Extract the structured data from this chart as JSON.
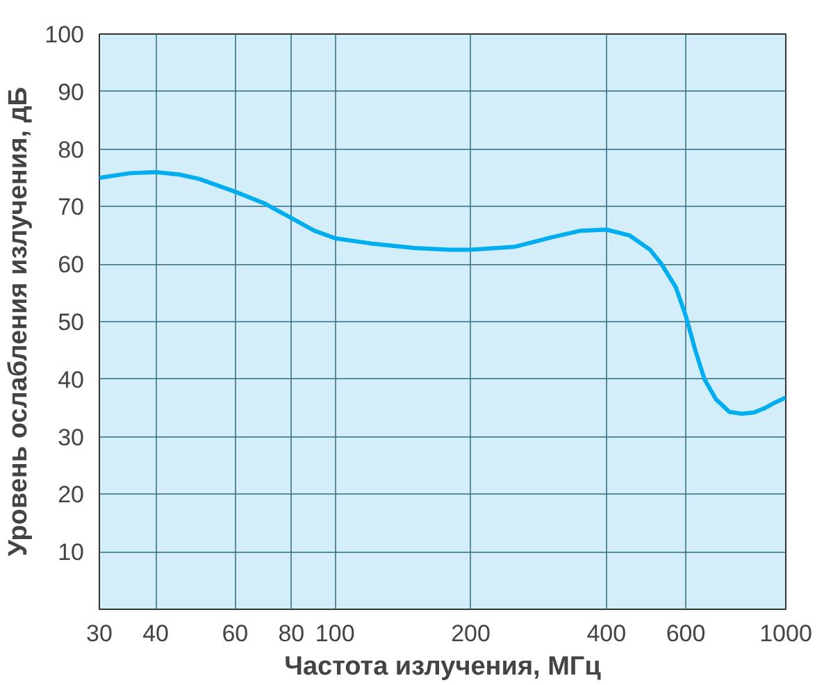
{
  "chart_data": {
    "type": "line",
    "xlabel": "Частота излучения, МГц",
    "ylabel": "Уровень ослабления излучения, дБ",
    "log": "x",
    "xlim": [
      30,
      1000
    ],
    "ylim": [
      0,
      100
    ],
    "xticks": [
      30,
      40,
      60,
      80,
      100,
      200,
      400,
      600,
      1000
    ],
    "yticks": [
      10,
      20,
      30,
      40,
      50,
      60,
      70,
      80,
      90,
      100
    ],
    "grid": true,
    "marker": "none",
    "line_style": "solid",
    "series": [
      {
        "color": "#00aeef",
        "x": [
          30,
          35,
          40,
          45,
          50,
          60,
          70,
          80,
          90,
          100,
          120,
          150,
          180,
          200,
          250,
          300,
          350,
          400,
          450,
          500,
          530,
          570,
          600,
          630,
          660,
          700,
          750,
          800,
          850,
          900,
          950,
          1000
        ],
        "values": [
          75,
          75.8,
          76,
          75.6,
          74.8,
          72.6,
          70.5,
          68,
          65.8,
          64.5,
          63.6,
          62.8,
          62.5,
          62.5,
          63,
          64.6,
          65.8,
          66,
          65,
          62.5,
          60,
          56,
          51,
          45,
          40,
          36.5,
          34.3,
          34,
          34.2,
          35,
          36,
          36.8
        ]
      }
    ]
  }
}
